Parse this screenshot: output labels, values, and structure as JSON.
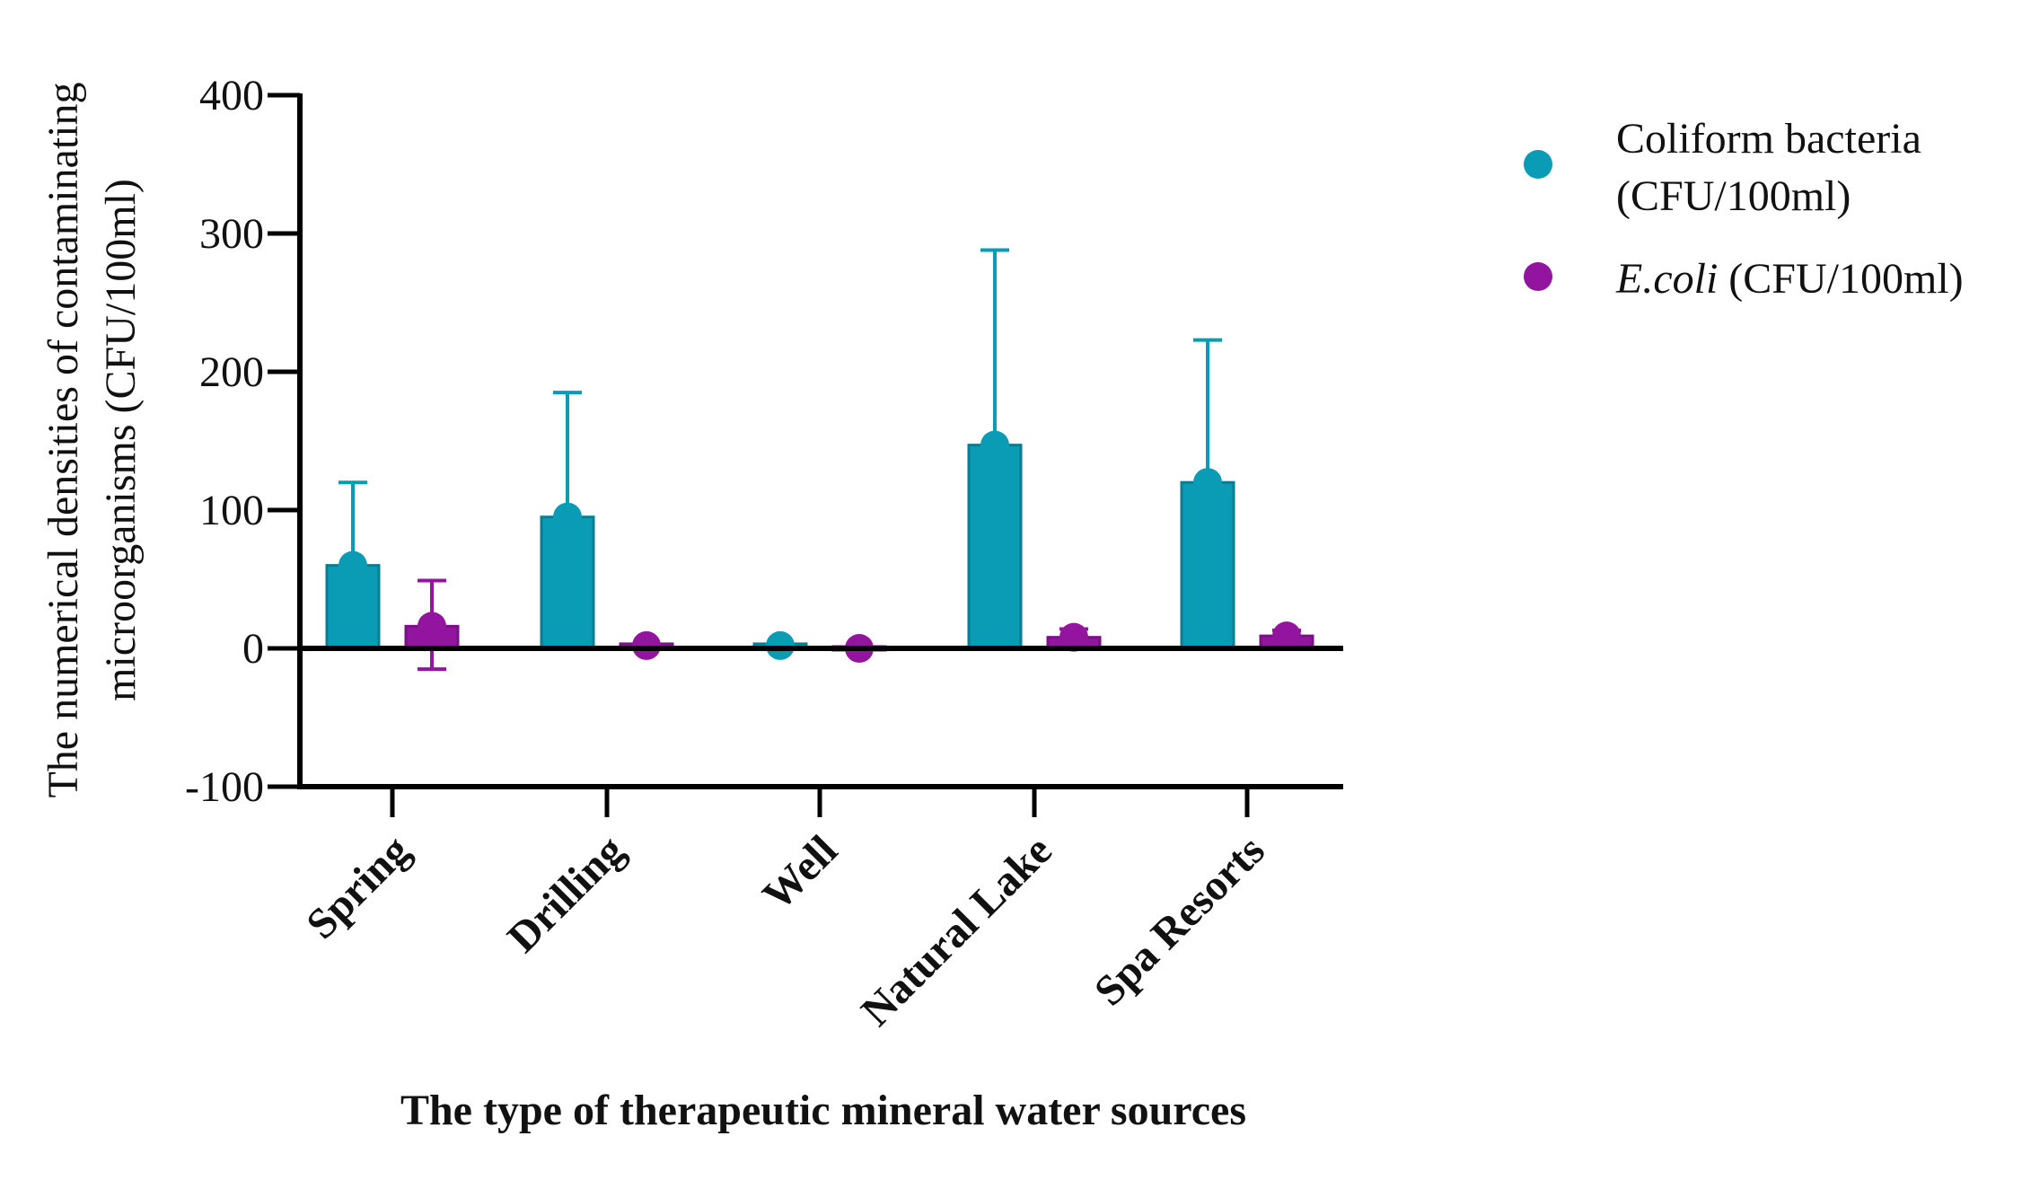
{
  "chart_data": {
    "type": "bar",
    "title": "",
    "xlabel": "The type of therapeutic mineral water sources",
    "ylabel_lines": [
      "The numerical densities of contaminating",
      "microorganisms (CFU/100ml)"
    ],
    "ylim": [
      -100,
      400
    ],
    "yticks": [
      400,
      300,
      200,
      100,
      0,
      -100
    ],
    "ytick_labels": [
      "400",
      "300",
      "200",
      "100",
      "0",
      "-100"
    ],
    "categories": [
      "Spring",
      "Drilling",
      "Well",
      "Natural Lake",
      "Spa Resorts"
    ],
    "series": [
      {
        "name": "Coliform bacteria (CFU/100ml)",
        "legend_lines": [
          "Coliform bacteria",
          "(CFU/100ml)"
        ],
        "color": "#0a9cb4",
        "edge_color": "#0b7d92",
        "values": [
          60,
          95,
          2,
          147,
          120
        ],
        "error_plus": [
          60,
          90,
          0,
          141,
          103
        ]
      },
      {
        "name": "E.coli (CFU/100ml)",
        "legend_italic": "E.coli",
        "legend_rest": " (CFU/100ml)",
        "color": "#93159f",
        "edge_color": "#7a0f86",
        "values": [
          16,
          2,
          0,
          8,
          9
        ],
        "error_plus": [
          33,
          0,
          0,
          6,
          4
        ],
        "error_minus": [
          31,
          0,
          0,
          0,
          0
        ]
      }
    ],
    "legend_position": "top-right"
  }
}
